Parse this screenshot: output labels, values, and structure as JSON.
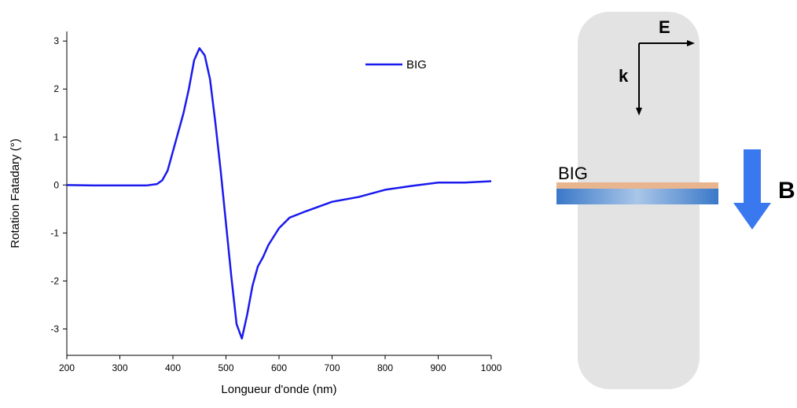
{
  "chart_data": {
    "type": "line",
    "x_label": "Longueur d'onde (nm)",
    "y_label": "Rotation Fatadary (°)",
    "xlim": [
      200,
      1000
    ],
    "xticks": [
      200,
      300,
      400,
      500,
      600,
      700,
      800,
      900,
      1000
    ],
    "ylim": [
      -3.55,
      3.2
    ],
    "yticks": [
      -3,
      -2,
      -1,
      0,
      1,
      2,
      3
    ],
    "legend": "top-right",
    "x": [
      200,
      250,
      300,
      350,
      370,
      380,
      390,
      400,
      410,
      420,
      430,
      440,
      450,
      460,
      470,
      480,
      490,
      500,
      510,
      520,
      530,
      540,
      550,
      560,
      570,
      580,
      600,
      620,
      650,
      700,
      750,
      800,
      850,
      900,
      950,
      1000
    ],
    "series": [
      {
        "name": "BIG",
        "color": "#1a1aee",
        "values": [
          0,
          -0.01,
          -0.01,
          -0.01,
          0.02,
          0.1,
          0.3,
          0.7,
          1.1,
          1.5,
          2.0,
          2.6,
          2.85,
          2.7,
          2.2,
          1.3,
          0.3,
          -0.8,
          -1.9,
          -2.9,
          -3.2,
          -2.7,
          -2.1,
          -1.7,
          -1.5,
          -1.25,
          -0.9,
          -0.68,
          -0.55,
          -0.35,
          -0.25,
          -0.1,
          -0.02,
          0.05,
          0.05,
          0.08
        ]
      }
    ]
  },
  "diagram": {
    "field": "E",
    "wavevector": "k",
    "layer": "BIG",
    "magnetic_field": "B"
  }
}
